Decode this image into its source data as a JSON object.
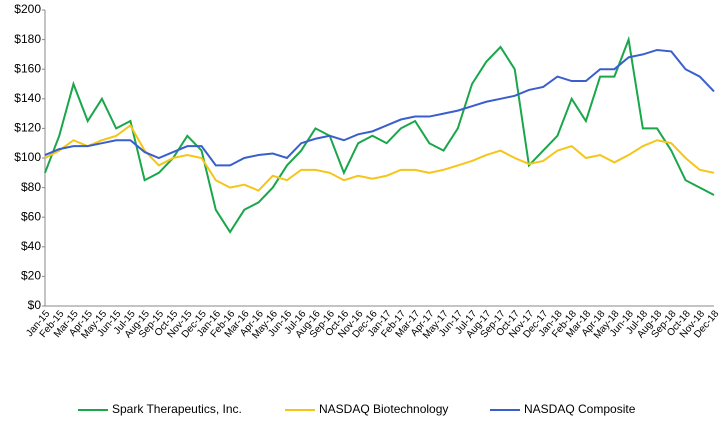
{
  "chart_data": {
    "type": "line",
    "categories": [
      "Jan-15",
      "Feb-15",
      "Mar-15",
      "Apr-15",
      "May-15",
      "Jun-15",
      "Jul-15",
      "Aug-15",
      "Sep-15",
      "Oct-15",
      "Nov-15",
      "Dec-15",
      "Jan-16",
      "Feb-16",
      "Mar-16",
      "Apr-16",
      "May-16",
      "Jun-16",
      "Jul-16",
      "Aug-16",
      "Sep-16",
      "Oct-16",
      "Nov-16",
      "Dec-16",
      "Jan-17",
      "Feb-17",
      "Mar-17",
      "Apr-17",
      "May-17",
      "Jun-17",
      "Jul-17",
      "Aug-17",
      "Sep-17",
      "Oct-17",
      "Nov-17",
      "Dec-17",
      "Jan-18",
      "Feb-18",
      "Mar-18",
      "Apr-18",
      "May-18",
      "Jun-18",
      "Jul-18",
      "Aug-18",
      "Sep-18",
      "Oct-18",
      "Nov-18",
      "Dec-18"
    ],
    "series": [
      {
        "name": "Spark Therapeutics, Inc.",
        "color": "#1aa64a",
        "values": [
          90,
          115,
          150,
          125,
          140,
          120,
          125,
          85,
          90,
          100,
          115,
          105,
          65,
          50,
          65,
          70,
          80,
          95,
          105,
          120,
          115,
          90,
          110,
          115,
          110,
          120,
          125,
          110,
          105,
          120,
          150,
          165,
          175,
          160,
          95,
          105,
          115,
          140,
          125,
          155,
          155,
          180,
          120,
          120,
          105,
          85,
          80,
          75
        ]
      },
      {
        "name": "NASDAQ Biotechnology",
        "color": "#f5c518",
        "values": [
          100,
          105,
          112,
          108,
          112,
          115,
          122,
          105,
          95,
          100,
          102,
          100,
          85,
          80,
          82,
          78,
          88,
          85,
          92,
          92,
          90,
          85,
          88,
          86,
          88,
          92,
          92,
          90,
          92,
          95,
          98,
          102,
          105,
          100,
          96,
          98,
          105,
          108,
          100,
          102,
          97,
          102,
          108,
          112,
          110,
          100,
          92,
          90
        ]
      },
      {
        "name": "NASDAQ Composite",
        "color": "#3a5fcd",
        "values": [
          102,
          106,
          108,
          108,
          110,
          112,
          112,
          104,
          100,
          104,
          108,
          108,
          95,
          95,
          100,
          102,
          103,
          100,
          110,
          113,
          115,
          112,
          116,
          118,
          122,
          126,
          128,
          128,
          130,
          132,
          135,
          138,
          140,
          142,
          146,
          148,
          155,
          152,
          152,
          160,
          160,
          168,
          170,
          173,
          172,
          160,
          155,
          145
        ]
      }
    ],
    "ylim": [
      0,
      200
    ],
    "yticks": [
      {
        "value": 0,
        "label": "$0"
      },
      {
        "value": 20,
        "label": "$20"
      },
      {
        "value": 40,
        "label": "$40"
      },
      {
        "value": 60,
        "label": "$60"
      },
      {
        "value": 80,
        "label": "$80"
      },
      {
        "value": 100,
        "label": "$100"
      },
      {
        "value": 120,
        "label": "$120"
      },
      {
        "value": 140,
        "label": "$140"
      },
      {
        "value": 160,
        "label": "$160"
      },
      {
        "value": 180,
        "label": "$180"
      },
      {
        "value": 200,
        "label": "$200"
      }
    ]
  }
}
